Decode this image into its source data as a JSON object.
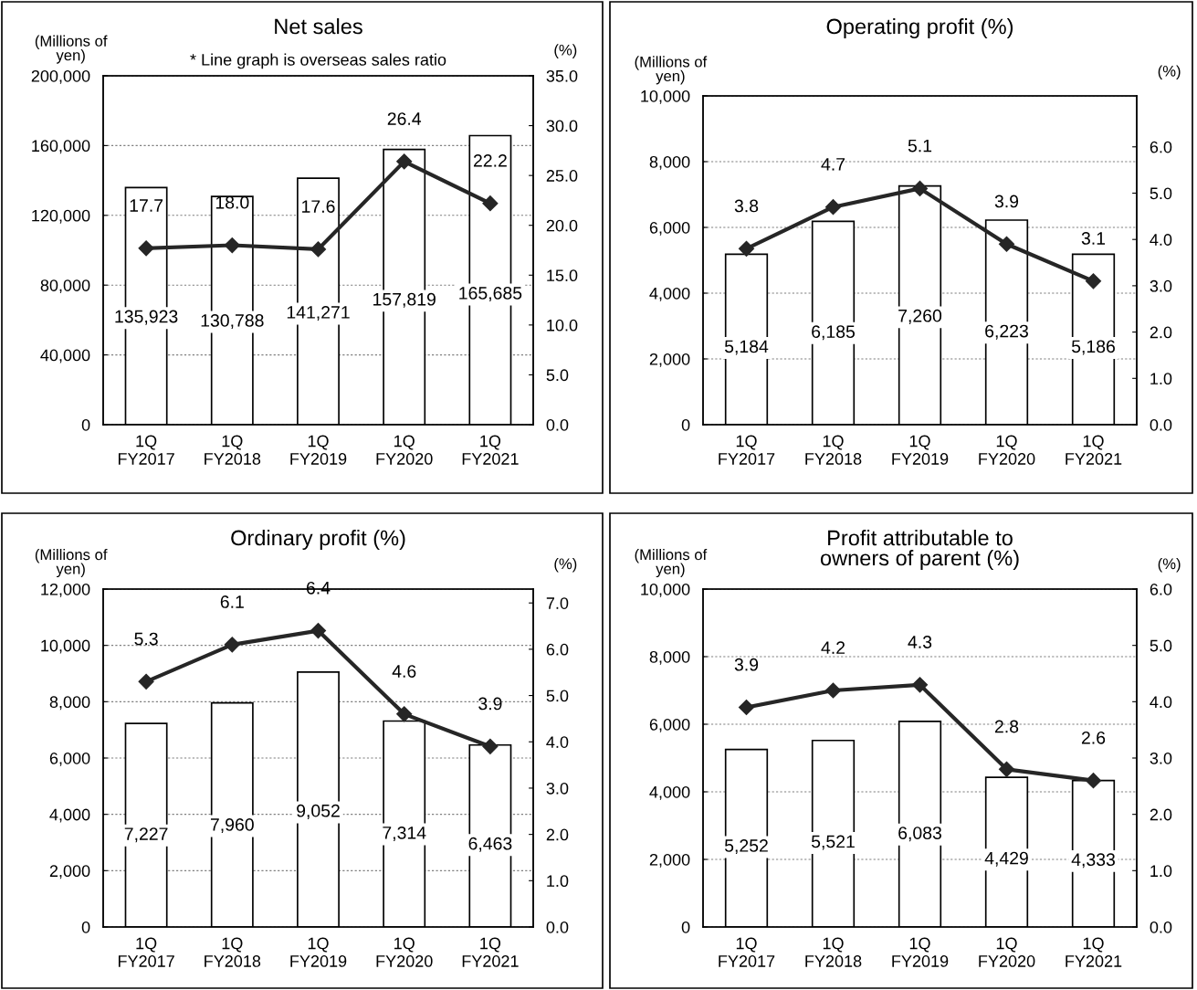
{
  "chart_data": [
    {
      "type": "bar",
      "title": "Net sales",
      "subtitle": "* Line graph is overseas sales ratio",
      "ylabel": "(Millions of\nyen)",
      "y2label": "(%)",
      "categories": [
        "1Q\nFY2017",
        "1Q\nFY2018",
        "1Q\nFY2019",
        "1Q\nFY2020",
        "1Q\nFY2021"
      ],
      "series": [
        {
          "color": "#ffffff",
          "values": [
            135923,
            130788,
            141271,
            157819,
            165685
          ],
          "value_labels": [
            "135,923",
            "130,788",
            "141,271",
            "157,819",
            "165,685"
          ]
        },
        {
          "type": "line",
          "axis": "y2",
          "color": "#262626",
          "marker": "diamond",
          "line_style": "solid",
          "values": [
            17.7,
            18.0,
            17.6,
            26.4,
            22.2
          ],
          "value_labels": [
            "17.7",
            "18.0",
            "17.6",
            "26.4",
            "22.2"
          ]
        }
      ],
      "ylim": [
        0,
        200000
      ],
      "yticks": [
        0,
        {
          "value": 40000,
          "label": "40,000"
        },
        {
          "value": 80000,
          "label": "80,000"
        },
        {
          "value": 120000,
          "label": "120,000"
        },
        {
          "value": 160000,
          "label": "160,000"
        },
        {
          "value": 200000,
          "label": "200,000"
        }
      ],
      "y2lim": [
        0,
        35
      ],
      "y2ticks": [
        {
          "value": 0,
          "label": "0.0"
        },
        {
          "value": 5,
          "label": "5.0"
        },
        {
          "value": 10,
          "label": "10.0"
        },
        {
          "value": 15,
          "label": "15.0"
        },
        {
          "value": 20,
          "label": "20.0"
        },
        {
          "value": 25,
          "label": "25.0"
        },
        {
          "value": 30,
          "label": "30.0"
        },
        {
          "value": 35,
          "label": "35.0"
        }
      ],
      "grid": "y",
      "legend": false
    },
    {
      "type": "bar",
      "title": "Operating profit (%)",
      "ylabel": "(Millions of\nyen)",
      "y2label": "(%)",
      "categories": [
        "1Q\nFY2017",
        "1Q\nFY2018",
        "1Q\nFY2019",
        "1Q\nFY2020",
        "1Q\nFY2021"
      ],
      "series": [
        {
          "color": "#ffffff",
          "values": [
            5184,
            6185,
            7260,
            6223,
            5186
          ],
          "value_labels": [
            "5,184",
            "6,185",
            "7,260",
            "6,223",
            "5,186"
          ]
        },
        {
          "type": "line",
          "axis": "y2",
          "color": "#262626",
          "marker": "diamond",
          "line_style": "solid",
          "values": [
            3.8,
            4.7,
            5.1,
            3.9,
            3.1
          ],
          "value_labels": [
            "3.8",
            "4.7",
            "5.1",
            "3.9",
            "3.1"
          ]
        }
      ],
      "ylim": [
        0,
        10000
      ],
      "yticks": [
        0,
        {
          "value": 2000,
          "label": "2,000"
        },
        {
          "value": 4000,
          "label": "4,000"
        },
        {
          "value": 6000,
          "label": "6,000"
        },
        {
          "value": 8000,
          "label": "8,000"
        },
        {
          "value": 10000,
          "label": "10,000"
        }
      ],
      "y2lim": [
        0,
        7.1
      ],
      "y2ticks": [
        {
          "value": 0,
          "label": "0.0"
        },
        {
          "value": 1,
          "label": "1.0"
        },
        {
          "value": 2,
          "label": "2.0"
        },
        {
          "value": 3,
          "label": "3.0"
        },
        {
          "value": 4,
          "label": "4.0"
        },
        {
          "value": 5,
          "label": "5.0"
        },
        {
          "value": 6,
          "label": "6.0"
        }
      ],
      "grid": "y",
      "legend": false
    },
    {
      "type": "bar",
      "title": "Ordinary profit (%)",
      "ylabel": "(Millions of\nyen)",
      "y2label": "(%)",
      "categories": [
        "1Q\nFY2017",
        "1Q\nFY2018",
        "1Q\nFY2019",
        "1Q\nFY2020",
        "1Q\nFY2021"
      ],
      "series": [
        {
          "color": "#ffffff",
          "values": [
            7227,
            7960,
            9052,
            7314,
            6463
          ],
          "value_labels": [
            "7,227",
            "7,960",
            "9,052",
            "7,314",
            "6,463"
          ]
        },
        {
          "type": "line",
          "axis": "y2",
          "color": "#262626",
          "marker": "diamond",
          "line_style": "solid",
          "values": [
            5.3,
            6.1,
            6.4,
            4.6,
            3.9
          ],
          "value_labels": [
            "5.3",
            "6.1",
            "6.4",
            "4.6",
            "3.9"
          ]
        }
      ],
      "ylim": [
        0,
        12000
      ],
      "yticks": [
        0,
        {
          "value": 2000,
          "label": "2,000"
        },
        {
          "value": 4000,
          "label": "4,000"
        },
        {
          "value": 6000,
          "label": "6,000"
        },
        {
          "value": 8000,
          "label": "8,000"
        },
        {
          "value": 10000,
          "label": "10,000"
        },
        {
          "value": 12000,
          "label": "12,000"
        }
      ],
      "y2lim": [
        0,
        7.3
      ],
      "y2ticks": [
        {
          "value": 0,
          "label": "0.0"
        },
        {
          "value": 1,
          "label": "1.0"
        },
        {
          "value": 2,
          "label": "2.0"
        },
        {
          "value": 3,
          "label": "3.0"
        },
        {
          "value": 4,
          "label": "4.0"
        },
        {
          "value": 5,
          "label": "5.0"
        },
        {
          "value": 6,
          "label": "6.0"
        },
        {
          "value": 7,
          "label": "7.0"
        }
      ],
      "grid": "y",
      "legend": false
    },
    {
      "type": "bar",
      "title": "Profit attributable to\nowners of parent (%)",
      "ylabel": "(Millions of\nyen)",
      "y2label": "(%)",
      "categories": [
        "1Q\nFY2017",
        "1Q\nFY2018",
        "1Q\nFY2019",
        "1Q\nFY2020",
        "1Q\nFY2021"
      ],
      "series": [
        {
          "color": "#ffffff",
          "values": [
            5252,
            5521,
            6083,
            4429,
            4333
          ],
          "value_labels": [
            "5,252",
            "5,521",
            "6,083",
            "4,429",
            "4,333"
          ]
        },
        {
          "type": "line",
          "axis": "y2",
          "color": "#262626",
          "marker": "diamond",
          "line_style": "solid",
          "values": [
            3.9,
            4.2,
            4.3,
            2.8,
            2.6
          ],
          "value_labels": [
            "3.9",
            "4.2",
            "4.3",
            "2.8",
            "2.6"
          ]
        }
      ],
      "ylim": [
        0,
        10000
      ],
      "yticks": [
        0,
        {
          "value": 2000,
          "label": "2,000"
        },
        {
          "value": 4000,
          "label": "4,000"
        },
        {
          "value": 6000,
          "label": "6,000"
        },
        {
          "value": 8000,
          "label": "8,000"
        },
        {
          "value": 10000,
          "label": "10,000"
        }
      ],
      "y2lim": [
        0,
        6
      ],
      "y2ticks": [
        {
          "value": 0,
          "label": "0.0"
        },
        {
          "value": 1,
          "label": "1.0"
        },
        {
          "value": 2,
          "label": "2.0"
        },
        {
          "value": 3,
          "label": "3.0"
        },
        {
          "value": 4,
          "label": "4.0"
        },
        {
          "value": 5,
          "label": "5.0"
        },
        {
          "value": 6,
          "label": "6.0"
        }
      ],
      "grid": "y",
      "legend": false
    }
  ]
}
